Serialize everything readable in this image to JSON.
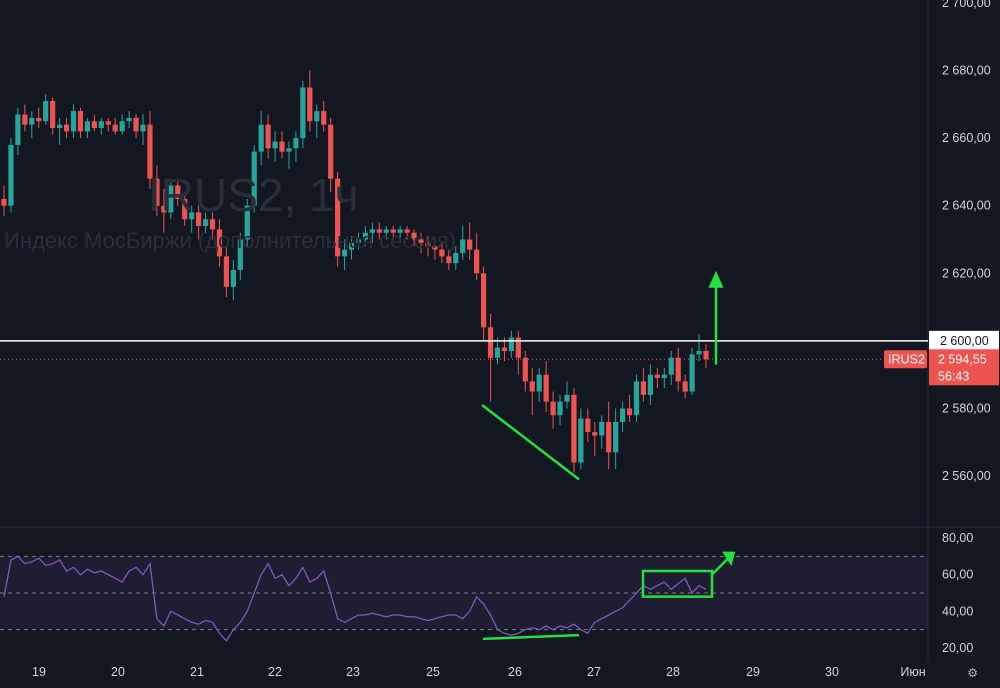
{
  "chart_data": {
    "type": "candlestick",
    "watermark": {
      "title": "IRUS2, 1ч",
      "subtitle": "Индекс МосБиржи (дополнительная сессия)"
    },
    "price_axis": {
      "ticks": [
        "2 700,00",
        "2 680,00",
        "2 660,00",
        "2 640,00",
        "2 620,00",
        "2 600,00",
        "2 580,00",
        "2 560,00"
      ],
      "range": [
        2551,
        2703
      ]
    },
    "horizontal_line": {
      "value": 2600,
      "label": "2 600,00"
    },
    "last_price": {
      "symbol": "IRUS2",
      "value": 2594.55,
      "label": "2 594,55",
      "countdown": "56:43"
    },
    "x_axis": {
      "ticks": [
        "19",
        "20",
        "21",
        "22",
        "23",
        "25",
        "26",
        "27",
        "28",
        "29",
        "30",
        "Июн"
      ]
    },
    "candles_ohlc": [
      [
        2642,
        2646,
        2637,
        2640
      ],
      [
        2640,
        2660,
        2638,
        2658
      ],
      [
        2658,
        2669,
        2655,
        2667
      ],
      [
        2667,
        2670,
        2662,
        2664
      ],
      [
        2664,
        2668,
        2660,
        2666
      ],
      [
        2666,
        2669,
        2663,
        2665
      ],
      [
        2665,
        2673,
        2664,
        2671
      ],
      [
        2671,
        2672,
        2661,
        2663
      ],
      [
        2663,
        2666,
        2658,
        2664
      ],
      [
        2664,
        2666,
        2660,
        2662
      ],
      [
        2662,
        2670,
        2660,
        2668
      ],
      [
        2668,
        2669,
        2660,
        2662
      ],
      [
        2662,
        2666,
        2660,
        2665
      ],
      [
        2665,
        2667,
        2662,
        2663
      ],
      [
        2663,
        2666,
        2661,
        2665
      ],
      [
        2665,
        2666,
        2662,
        2664
      ],
      [
        2664,
        2666,
        2661,
        2662
      ],
      [
        2662,
        2667,
        2661,
        2665
      ],
      [
        2665,
        2668,
        2663,
        2666
      ],
      [
        2666,
        2667,
        2660,
        2662
      ],
      [
        2662,
        2667,
        2658,
        2664
      ],
      [
        2664,
        2668,
        2645,
        2648
      ],
      [
        2648,
        2652,
        2637,
        2640
      ],
      [
        2640,
        2645,
        2632,
        2638
      ],
      [
        2638,
        2648,
        2636,
        2646
      ],
      [
        2646,
        2648,
        2640,
        2642
      ],
      [
        2642,
        2644,
        2634,
        2636
      ],
      [
        2636,
        2640,
        2632,
        2638
      ],
      [
        2638,
        2640,
        2630,
        2634
      ],
      [
        2634,
        2638,
        2632,
        2636
      ],
      [
        2636,
        2638,
        2630,
        2633
      ],
      [
        2633,
        2636,
        2622,
        2625
      ],
      [
        2625,
        2628,
        2613,
        2616
      ],
      [
        2616,
        2624,
        2612,
        2621
      ],
      [
        2621,
        2632,
        2618,
        2630
      ],
      [
        2630,
        2642,
        2628,
        2640
      ],
      [
        2640,
        2658,
        2638,
        2656
      ],
      [
        2656,
        2668,
        2652,
        2664
      ],
      [
        2664,
        2667,
        2654,
        2657
      ],
      [
        2657,
        2662,
        2653,
        2659
      ],
      [
        2659,
        2662,
        2654,
        2656
      ],
      [
        2656,
        2659,
        2651,
        2657
      ],
      [
        2657,
        2662,
        2653,
        2660
      ],
      [
        2660,
        2677,
        2657,
        2675
      ],
      [
        2675,
        2680,
        2662,
        2665
      ],
      [
        2665,
        2670,
        2660,
        2668
      ],
      [
        2668,
        2671,
        2662,
        2664
      ],
      [
        2664,
        2666,
        2644,
        2648
      ],
      [
        2648,
        2650,
        2622,
        2625
      ],
      [
        2625,
        2630,
        2621,
        2627
      ],
      [
        2627,
        2631,
        2624,
        2629
      ],
      [
        2629,
        2632,
        2627,
        2630
      ],
      [
        2630,
        2634,
        2628,
        2632
      ],
      [
        2632,
        2635,
        2629,
        2633
      ],
      [
        2633,
        2635,
        2630,
        2632
      ],
      [
        2632,
        2634,
        2630,
        2633
      ],
      [
        2633,
        2634,
        2630,
        2632
      ],
      [
        2632,
        2634,
        2629,
        2633
      ],
      [
        2633,
        2634,
        2630,
        2632
      ],
      [
        2632,
        2633,
        2628,
        2630
      ],
      [
        2630,
        2632,
        2626,
        2629
      ],
      [
        2629,
        2631,
        2625,
        2628
      ],
      [
        2628,
        2630,
        2624,
        2627
      ],
      [
        2627,
        2629,
        2623,
        2625
      ],
      [
        2625,
        2627,
        2621,
        2623
      ],
      [
        2623,
        2628,
        2621,
        2626
      ],
      [
        2626,
        2634,
        2624,
        2630
      ],
      [
        2630,
        2635,
        2624,
        2627
      ],
      [
        2627,
        2632,
        2618,
        2620
      ],
      [
        2620,
        2622,
        2600,
        2604
      ],
      [
        2604,
        2608,
        2582,
        2595
      ],
      [
        2595,
        2601,
        2593,
        2598
      ],
      [
        2598,
        2601,
        2594,
        2597
      ],
      [
        2597,
        2603,
        2595,
        2601
      ],
      [
        2601,
        2603,
        2590,
        2595
      ],
      [
        2595,
        2597,
        2585,
        2588
      ],
      [
        2588,
        2592,
        2578,
        2585
      ],
      [
        2585,
        2592,
        2582,
        2590
      ],
      [
        2590,
        2594,
        2579,
        2582
      ],
      [
        2582,
        2585,
        2574,
        2578
      ],
      [
        2578,
        2584,
        2575,
        2582
      ],
      [
        2582,
        2588,
        2580,
        2584
      ],
      [
        2584,
        2586,
        2561,
        2564
      ],
      [
        2564,
        2580,
        2562,
        2577
      ],
      [
        2577,
        2580,
        2570,
        2573
      ],
      [
        2573,
        2576,
        2566,
        2572
      ],
      [
        2572,
        2578,
        2568,
        2576
      ],
      [
        2576,
        2582,
        2562,
        2567
      ],
      [
        2567,
        2580,
        2562,
        2576
      ],
      [
        2576,
        2582,
        2573,
        2580
      ],
      [
        2580,
        2584,
        2576,
        2578
      ],
      [
        2578,
        2590,
        2576,
        2588
      ],
      [
        2588,
        2592,
        2582,
        2584
      ],
      [
        2584,
        2593,
        2581,
        2590
      ],
      [
        2590,
        2592,
        2586,
        2589
      ],
      [
        2589,
        2592,
        2586,
        2590
      ],
      [
        2590,
        2597,
        2587,
        2595
      ],
      [
        2595,
        2598,
        2585,
        2588
      ],
      [
        2588,
        2590,
        2583,
        2585
      ],
      [
        2585,
        2598,
        2584,
        2596
      ],
      [
        2596,
        2602,
        2594,
        2597
      ],
      [
        2597,
        2599,
        2592,
        2594.55
      ]
    ],
    "rsi": {
      "axis_ticks": [
        "80,00",
        "60,00",
        "40,00",
        "20,00"
      ],
      "range": [
        12,
        84
      ],
      "bands": [
        70,
        50,
        30
      ],
      "values": [
        48,
        68,
        70,
        66,
        67,
        69,
        65,
        66,
        68,
        62,
        64,
        60,
        63,
        61,
        62,
        60,
        58,
        56,
        62,
        64,
        60,
        66,
        36,
        32,
        40,
        38,
        36,
        34,
        33,
        35,
        34,
        28,
        24,
        30,
        34,
        40,
        50,
        60,
        66,
        58,
        60,
        54,
        58,
        64,
        56,
        58,
        62,
        50,
        36,
        34,
        36,
        38,
        38,
        39,
        38,
        37,
        38,
        38,
        37,
        37,
        36,
        35,
        36,
        37,
        38,
        38,
        36,
        40,
        48,
        44,
        38,
        30,
        28,
        27,
        28,
        30,
        31,
        30,
        32,
        30,
        32,
        31,
        33,
        30,
        28,
        34,
        36,
        38,
        40,
        42,
        46,
        50,
        54,
        52,
        54,
        56,
        52,
        55,
        58,
        50,
        54,
        52
      ]
    },
    "annotations": [
      "price-trendline-green",
      "price-arrow-up-green",
      "rsi-divergence-line-green",
      "rsi-box-green",
      "rsi-arrow-green"
    ]
  },
  "colors": {
    "up": "#26a69a",
    "down": "#ef5350",
    "rsi": "#7e57c2",
    "annotation": "#26e040",
    "background": "#131722",
    "text": "#d1d4dc"
  },
  "icons": {
    "settings": "settings-icon"
  }
}
